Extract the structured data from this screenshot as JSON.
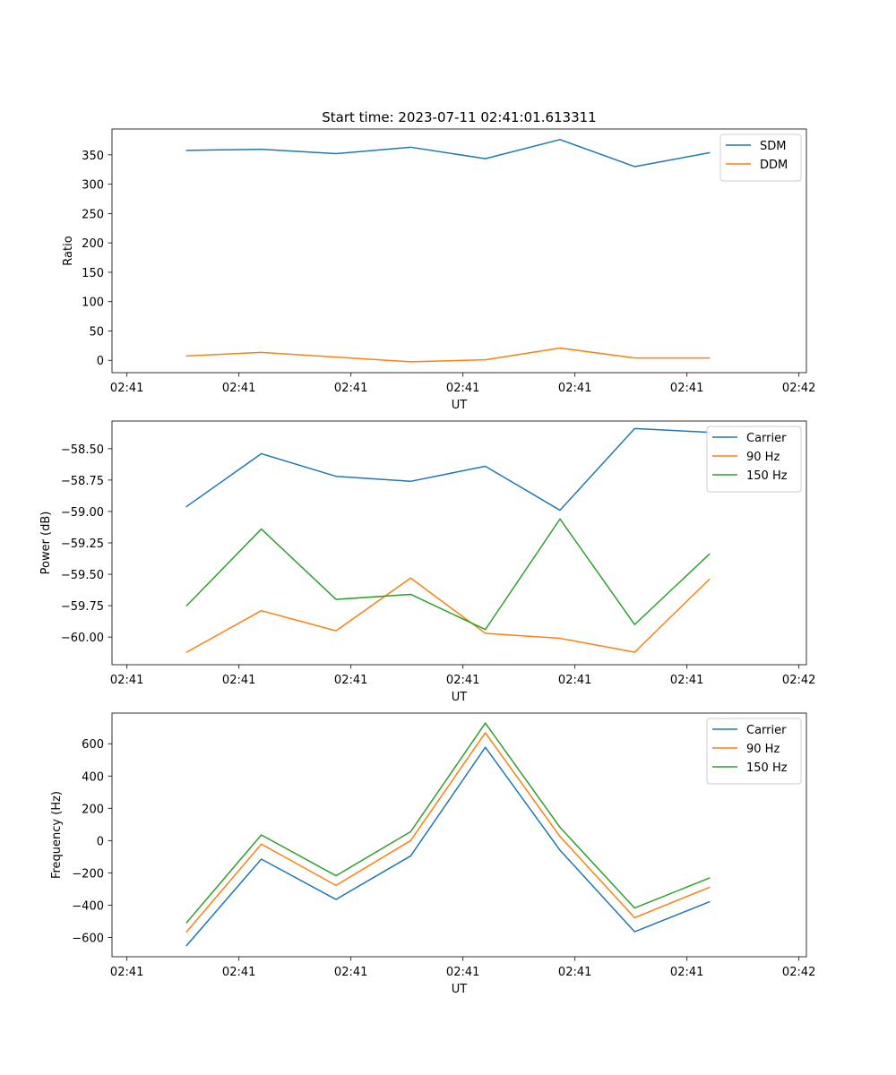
{
  "figure": {
    "title": "Start time: 2023-07-11 02:41:01.613311",
    "background": "#ffffff"
  },
  "chart_data": [
    {
      "type": "line",
      "title": "Start time: 2023-07-11 02:41:01.613311",
      "xlabel": "UT",
      "ylabel": "Ratio",
      "xlim": [
        -1,
        8.3
      ],
      "ylim": [
        -21,
        394
      ],
      "x_ticks": [
        -0.8,
        0.7,
        2.2,
        3.7,
        5.2,
        6.7,
        8.2
      ],
      "x_tick_labels": [
        "02:41",
        "02:41",
        "02:41",
        "02:41",
        "02:41",
        "02:41",
        "02:42"
      ],
      "y_ticks": [
        0,
        50,
        100,
        150,
        200,
        250,
        300,
        350
      ],
      "y_tick_labels": [
        "0",
        "50",
        "100",
        "150",
        "200",
        "250",
        "300",
        "350"
      ],
      "legend_position": "top-right",
      "x": [
        0,
        1,
        2,
        3,
        4,
        5,
        6,
        7
      ],
      "series": [
        {
          "name": "SDM",
          "color": "#1f77b4",
          "values": [
            357.5,
            359.5,
            352,
            363,
            343.5,
            376,
            330,
            353.5
          ]
        },
        {
          "name": "DDM",
          "color": "#ff7f0e",
          "values": [
            7.5,
            13.5,
            5.5,
            -2.5,
            1,
            21,
            4,
            4
          ]
        }
      ]
    },
    {
      "type": "line",
      "title": "",
      "xlabel": "UT",
      "ylabel": "Power (dB)",
      "xlim": [
        -1,
        8.3
      ],
      "ylim": [
        -60.22,
        -58.28
      ],
      "x_ticks": [
        -0.8,
        0.7,
        2.2,
        3.7,
        5.2,
        6.7,
        8.2
      ],
      "x_tick_labels": [
        "02:41",
        "02:41",
        "02:41",
        "02:41",
        "02:41",
        "02:41",
        "02:42"
      ],
      "y_ticks": [
        -60,
        -59.75,
        -59.5,
        -59.25,
        -59,
        -58.75,
        -58.5
      ],
      "y_tick_labels": [
        "−60.00",
        "−59.75",
        "−59.50",
        "−59.25",
        "−59.00",
        "−58.75",
        "−58.50"
      ],
      "legend_position": "top-right",
      "x": [
        0,
        1,
        2,
        3,
        4,
        5,
        6,
        7
      ],
      "series": [
        {
          "name": "Carrier",
          "color": "#1f77b4",
          "values": [
            -58.96,
            -58.54,
            -58.72,
            -58.76,
            -58.64,
            -58.99,
            -58.34,
            -58.37
          ]
        },
        {
          "name": "90 Hz",
          "color": "#ff7f0e",
          "values": [
            -60.12,
            -59.79,
            -59.95,
            -59.53,
            -59.97,
            -60.01,
            -60.12,
            -59.54
          ]
        },
        {
          "name": "150 Hz",
          "color": "#2ca02c",
          "values": [
            -59.75,
            -59.14,
            -59.7,
            -59.66,
            -59.94,
            -59.06,
            -59.9,
            -59.34
          ]
        }
      ]
    },
    {
      "type": "line",
      "title": "",
      "xlabel": "UT",
      "ylabel": "Frequency (Hz)",
      "xlim": [
        -1,
        8.3
      ],
      "ylim": [
        -720,
        790
      ],
      "x_ticks": [
        -0.8,
        0.7,
        2.2,
        3.7,
        5.2,
        6.7,
        8.2
      ],
      "x_tick_labels": [
        "02:41",
        "02:41",
        "02:41",
        "02:41",
        "02:41",
        "02:41",
        "02:42"
      ],
      "y_ticks": [
        -600,
        -400,
        -200,
        0,
        200,
        400,
        600
      ],
      "y_tick_labels": [
        "−600",
        "−400",
        "−200",
        "0",
        "200",
        "400",
        "600"
      ],
      "legend_position": "top-right",
      "x": [
        0,
        1,
        2,
        3,
        4,
        5,
        6,
        7
      ],
      "series": [
        {
          "name": "Carrier",
          "color": "#1f77b4",
          "values": [
            -650,
            -115,
            -365,
            -95,
            578,
            -60,
            -565,
            -380
          ]
        },
        {
          "name": "90 Hz",
          "color": "#ff7f0e",
          "values": [
            -565,
            -22,
            -278,
            0,
            668,
            25,
            -478,
            -290
          ]
        },
        {
          "name": "150 Hz",
          "color": "#2ca02c",
          "values": [
            -508,
            35,
            -218,
            55,
            728,
            82,
            -418,
            -232
          ]
        }
      ]
    }
  ]
}
